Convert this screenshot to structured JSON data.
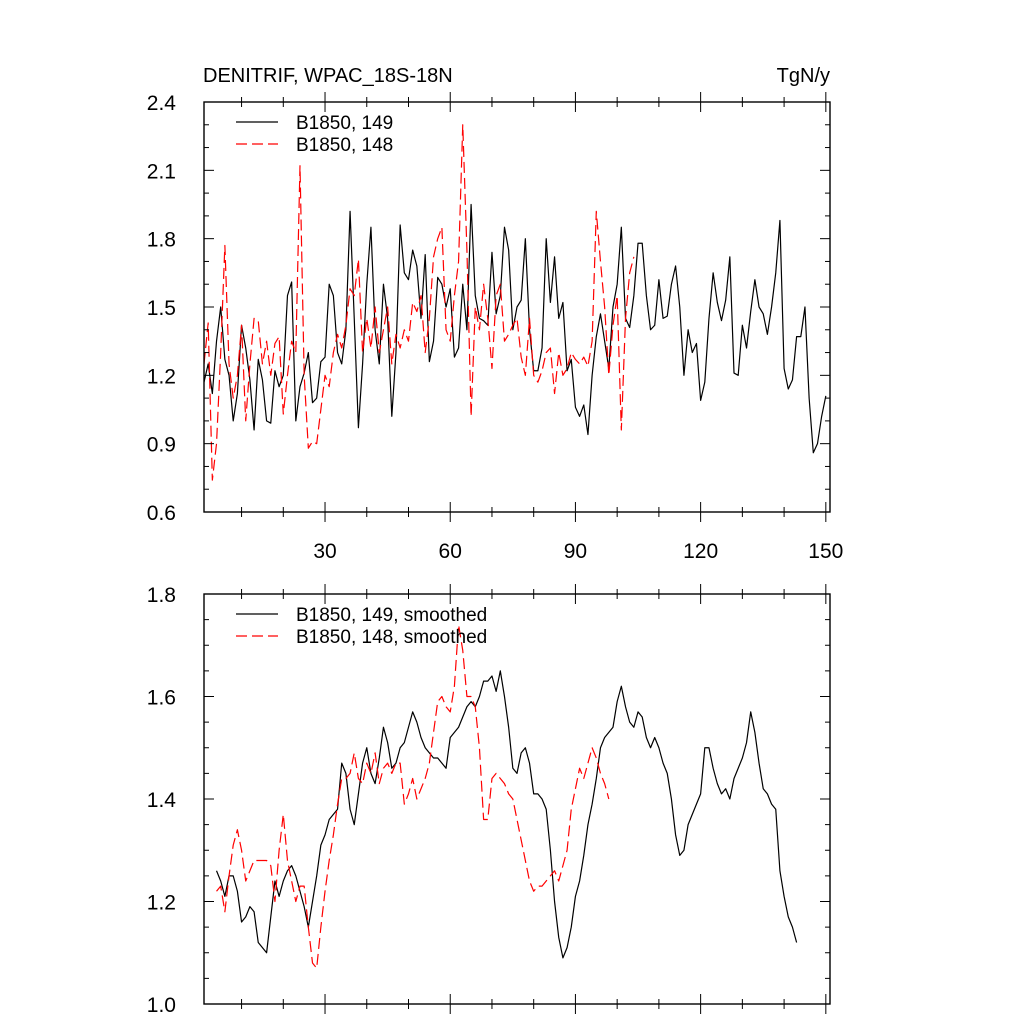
{
  "header": {
    "title": "DENITRIF, WPAC_18S-18N",
    "units": "TgN/y"
  },
  "chart_data": [
    {
      "type": "line",
      "panel": "top",
      "title": "DENITRIF, WPAC_18S-18N",
      "units": "TgN/y",
      "xlim": [
        1,
        151
      ],
      "ylim": [
        0.6,
        2.4
      ],
      "x_major_ticks": [
        30,
        60,
        90,
        120,
        150
      ],
      "x_tick_labels": [
        "30",
        "60",
        "90",
        "120",
        "150"
      ],
      "y_major_ticks": [
        0.6,
        0.9,
        1.2,
        1.5,
        1.8,
        2.1,
        2.4
      ],
      "y_tick_labels": [
        "0.6",
        "0.9",
        "1.2",
        "1.5",
        "1.8",
        "2.1",
        "2.4"
      ],
      "legend_position": "top-left",
      "series": [
        {
          "name": "B1850, 149",
          "color": "#000000",
          "dash": "solid",
          "x_start": 1,
          "values": [
            1.17,
            1.25,
            1.12,
            1.35,
            1.5,
            1.27,
            1.2,
            1.0,
            1.12,
            1.42,
            1.32,
            1.18,
            0.96,
            1.27,
            1.18,
            1.0,
            0.99,
            1.22,
            1.15,
            1.2,
            1.55,
            1.61,
            1.0,
            1.15,
            1.21,
            1.3,
            1.08,
            1.1,
            1.26,
            1.28,
            1.6,
            1.55,
            1.3,
            1.25,
            1.4,
            1.92,
            1.45,
            0.97,
            1.25,
            1.6,
            1.85,
            1.4,
            1.25,
            1.6,
            1.45,
            1.02,
            1.3,
            1.86,
            1.65,
            1.62,
            1.75,
            1.68,
            1.45,
            1.73,
            1.26,
            1.35,
            1.63,
            1.6,
            1.5,
            1.58,
            1.28,
            1.32,
            1.6,
            1.4,
            1.95,
            1.55,
            1.45,
            1.44,
            1.42,
            1.74,
            1.47,
            1.55,
            1.85,
            1.75,
            1.4,
            1.5,
            1.53,
            1.8,
            1.4,
            1.22,
            1.22,
            1.32,
            1.8,
            1.52,
            1.72,
            1.45,
            1.52,
            1.22,
            1.27,
            1.06,
            1.02,
            1.07,
            0.94,
            1.2,
            1.37,
            1.47,
            1.35,
            1.23,
            1.5,
            1.6,
            1.85,
            1.45,
            1.41,
            1.55,
            1.78,
            1.78,
            1.55,
            1.4,
            1.42,
            1.62,
            1.45,
            1.46,
            1.6,
            1.68,
            1.5,
            1.2,
            1.4,
            1.3,
            1.34,
            1.09,
            1.17,
            1.45,
            1.65,
            1.52,
            1.44,
            1.53,
            1.72,
            1.21,
            1.2,
            1.42,
            1.32,
            1.48,
            1.62,
            1.5,
            1.47,
            1.38,
            1.5,
            1.65,
            1.88,
            1.23,
            1.14,
            1.18,
            1.37,
            1.37,
            1.5,
            1.1,
            0.86,
            0.9,
            1.02,
            1.11
          ]
        },
        {
          "name": "B1850, 148",
          "color": "#ff0000",
          "dash": "dashed",
          "x_start": 1,
          "values": [
            1.25,
            1.43,
            0.74,
            0.9,
            1.3,
            1.77,
            1.25,
            1.1,
            1.2,
            1.42,
            1.0,
            1.25,
            1.45,
            1.44,
            1.25,
            1.35,
            1.2,
            1.34,
            1.37,
            1.03,
            1.2,
            1.35,
            1.3,
            2.12,
            1.2,
            0.88,
            0.91,
            0.9,
            1.05,
            1.2,
            1.15,
            1.3,
            1.38,
            1.32,
            1.42,
            1.58,
            1.55,
            1.71,
            1.3,
            1.45,
            1.32,
            1.5,
            1.3,
            1.4,
            1.5,
            1.25,
            1.38,
            1.32,
            1.4,
            1.35,
            1.52,
            1.48,
            1.55,
            1.3,
            1.45,
            1.72,
            1.8,
            1.85,
            1.4,
            1.35,
            1.55,
            1.7,
            2.3,
            1.75,
            1.02,
            1.5,
            1.4,
            1.6,
            1.45,
            1.23,
            1.55,
            1.6,
            1.35,
            1.38,
            1.42,
            1.45,
            1.28,
            1.2,
            1.45,
            1.2,
            1.17,
            1.22,
            1.3,
            1.32,
            1.12,
            1.3,
            1.2,
            1.23,
            1.3,
            1.27,
            1.25,
            1.28,
            1.24,
            1.35,
            1.92,
            1.7,
            1.5,
            1.2,
            1.42,
            1.55,
            0.96,
            1.45,
            1.65,
            1.72
          ]
        }
      ]
    },
    {
      "type": "line",
      "panel": "bottom",
      "title": "",
      "xlim": [
        1,
        151
      ],
      "ylim": [
        1.0,
        1.8
      ],
      "x_major_ticks": [
        30,
        60,
        90,
        120,
        150
      ],
      "x_tick_labels": [],
      "y_major_ticks": [
        1.0,
        1.2,
        1.4,
        1.6,
        1.8
      ],
      "y_tick_labels": [
        "1.0",
        "1.2",
        "1.4",
        "1.6",
        "1.8"
      ],
      "legend_position": "top-left",
      "series": [
        {
          "name": "B1850, 149, smoothed",
          "color": "#000000",
          "dash": "solid",
          "x_start": 4,
          "values": [
            1.26,
            1.24,
            1.21,
            1.25,
            1.25,
            1.22,
            1.16,
            1.17,
            1.19,
            1.18,
            1.12,
            1.11,
            1.1,
            1.17,
            1.24,
            1.21,
            1.24,
            1.26,
            1.27,
            1.25,
            1.22,
            1.19,
            1.15,
            1.2,
            1.25,
            1.31,
            1.33,
            1.36,
            1.37,
            1.38,
            1.47,
            1.45,
            1.38,
            1.35,
            1.41,
            1.47,
            1.5,
            1.45,
            1.43,
            1.48,
            1.54,
            1.51,
            1.46,
            1.47,
            1.5,
            1.51,
            1.54,
            1.57,
            1.55,
            1.52,
            1.5,
            1.49,
            1.48,
            1.48,
            1.47,
            1.46,
            1.52,
            1.53,
            1.54,
            1.56,
            1.58,
            1.59,
            1.58,
            1.6,
            1.63,
            1.63,
            1.64,
            1.61,
            1.65,
            1.6,
            1.54,
            1.46,
            1.45,
            1.49,
            1.5,
            1.47,
            1.41,
            1.41,
            1.4,
            1.38,
            1.3,
            1.2,
            1.13,
            1.09,
            1.11,
            1.15,
            1.21,
            1.24,
            1.29,
            1.35,
            1.39,
            1.44,
            1.5,
            1.52,
            1.53,
            1.54,
            1.59,
            1.62,
            1.58,
            1.55,
            1.54,
            1.57,
            1.56,
            1.52,
            1.5,
            1.52,
            1.5,
            1.47,
            1.45,
            1.4,
            1.33,
            1.29,
            1.3,
            1.35,
            1.37,
            1.39,
            1.41,
            1.5,
            1.5,
            1.46,
            1.43,
            1.41,
            1.42,
            1.4,
            1.44,
            1.46,
            1.48,
            1.51,
            1.57,
            1.53,
            1.47,
            1.42,
            1.41,
            1.39,
            1.38,
            1.26,
            1.21,
            1.17,
            1.15,
            1.12
          ]
        },
        {
          "name": "B1850, 148, smoothed",
          "color": "#ff0000",
          "dash": "dashed",
          "x_start": 4,
          "values": [
            1.22,
            1.23,
            1.18,
            1.25,
            1.31,
            1.34,
            1.3,
            1.24,
            1.26,
            1.28,
            1.28,
            1.28,
            1.28,
            1.27,
            1.2,
            1.3,
            1.37,
            1.28,
            1.24,
            1.2,
            1.23,
            1.23,
            1.15,
            1.08,
            1.07,
            1.15,
            1.22,
            1.28,
            1.33,
            1.39,
            1.44,
            1.44,
            1.45,
            1.49,
            1.44,
            1.43,
            1.47,
            1.45,
            1.49,
            1.43,
            1.46,
            1.47,
            1.45,
            1.47,
            1.47,
            1.39,
            1.41,
            1.44,
            1.4,
            1.42,
            1.44,
            1.47,
            1.53,
            1.59,
            1.6,
            1.58,
            1.57,
            1.62,
            1.74,
            1.69,
            1.6,
            1.6,
            1.58,
            1.5,
            1.36,
            1.36,
            1.44,
            1.45,
            1.44,
            1.43,
            1.41,
            1.4,
            1.36,
            1.32,
            1.28,
            1.24,
            1.22,
            1.23,
            1.23,
            1.24,
            1.25,
            1.26,
            1.24,
            1.27,
            1.3,
            1.38,
            1.42,
            1.46,
            1.44,
            1.47,
            1.5,
            1.48,
            1.45,
            1.43,
            1.4
          ]
        }
      ]
    }
  ]
}
